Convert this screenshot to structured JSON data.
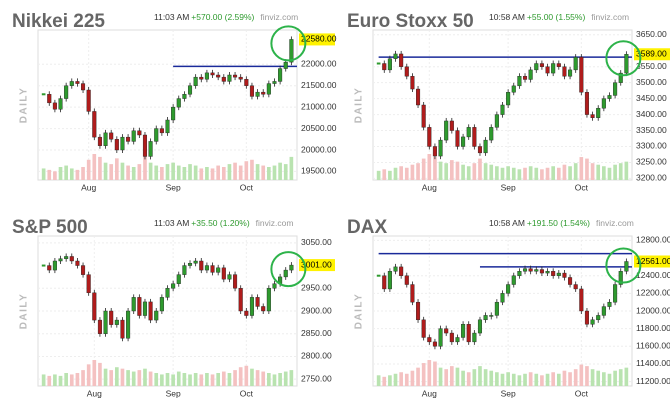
{
  "chart_data": [
    {
      "type": "candlestick",
      "title": "Nikkei 225",
      "time": "11:03 AM",
      "change": "+570.00 (2.59%)",
      "source": "finviz.com",
      "side_label": "DAILY",
      "up_color": "#2e9a2e",
      "down_color": "#b01c1c",
      "xlim": [
        -1,
        45
      ],
      "xticks": [
        {
          "value": 8,
          "label": "Aug"
        },
        {
          "value": 23,
          "label": "Sep"
        },
        {
          "value": 36,
          "label": "Oct"
        }
      ],
      "ylim": [
        19300,
        22800
      ],
      "yticks": [
        {
          "value": 22000,
          "label": "22000.00"
        },
        {
          "value": 21500,
          "label": "21500.00"
        },
        {
          "value": 21000,
          "label": "21000.00"
        },
        {
          "value": 20500,
          "label": "20500.00"
        },
        {
          "value": 20000,
          "label": "20000.00"
        },
        {
          "value": 19500,
          "label": "19500.00"
        }
      ],
      "last_label": {
        "value": 22580,
        "label": "22580.00"
      },
      "levels": [
        {
          "value": 21950,
          "from": 23
        }
      ],
      "values": [
        21300,
        21100,
        20950,
        21200,
        21500,
        21600,
        21550,
        21400,
        20900,
        20300,
        20100,
        20400,
        20250,
        20000,
        20300,
        20200,
        20450,
        20350,
        19850,
        20200,
        20500,
        20400,
        20700,
        21000,
        21200,
        21300,
        21500,
        21700,
        21650,
        21800,
        21750,
        21700,
        21600,
        21750,
        21700,
        21650,
        21500,
        21250,
        21350,
        21300,
        21550,
        21600,
        21900,
        22050,
        22580
      ],
      "volume": [
        40,
        35,
        30,
        45,
        50,
        40,
        35,
        45,
        70,
        90,
        80,
        60,
        55,
        75,
        60,
        50,
        45,
        55,
        85,
        60,
        50,
        45,
        55,
        60,
        50,
        45,
        55,
        50,
        40,
        45,
        40,
        50,
        45,
        55,
        60,
        50,
        65,
        70,
        55,
        50,
        45,
        50,
        60,
        55,
        80
      ]
    },
    {
      "type": "candlestick",
      "title": "Euro Stoxx 50",
      "time": "10:58 AM",
      "change": "+55.00 (1.55%)",
      "source": "finviz.com",
      "side_label": "DAILY",
      "up_color": "#2e9a2e",
      "down_color": "#b01c1c",
      "xlim": [
        -1,
        45
      ],
      "xticks": [
        {
          "value": 9,
          "label": "Aug"
        },
        {
          "value": 23,
          "label": "Sep"
        },
        {
          "value": 36,
          "label": "Oct"
        }
      ],
      "ylim": [
        3195,
        3665
      ],
      "yticks": [
        {
          "value": 3650,
          "label": "3650.00"
        },
        {
          "value": 3550,
          "label": "3550.00"
        },
        {
          "value": 3500,
          "label": "3500.00"
        },
        {
          "value": 3450,
          "label": "3450.00"
        },
        {
          "value": 3400,
          "label": "3400.00"
        },
        {
          "value": 3350,
          "label": "3350.00"
        },
        {
          "value": 3300,
          "label": "3300.00"
        },
        {
          "value": 3250,
          "label": "3250.00"
        },
        {
          "value": 3200,
          "label": "3200.00"
        }
      ],
      "last_label": {
        "value": 3589,
        "label": "3589.00"
      },
      "levels": [
        {
          "value": 3580,
          "from": 0
        }
      ],
      "values": [
        3560,
        3540,
        3575,
        3590,
        3550,
        3520,
        3480,
        3430,
        3360,
        3300,
        3270,
        3320,
        3380,
        3350,
        3300,
        3330,
        3360,
        3300,
        3280,
        3320,
        3360,
        3400,
        3430,
        3470,
        3490,
        3520,
        3510,
        3540,
        3560,
        3550,
        3530,
        3560,
        3550,
        3520,
        3540,
        3580,
        3470,
        3400,
        3390,
        3420,
        3450,
        3460,
        3500,
        3530,
        3589
      ],
      "volume": [
        30,
        35,
        30,
        40,
        45,
        40,
        50,
        55,
        70,
        85,
        75,
        60,
        55,
        65,
        60,
        50,
        45,
        55,
        70,
        55,
        50,
        45,
        40,
        45,
        40,
        35,
        40,
        45,
        40,
        35,
        40,
        45,
        40,
        50,
        45,
        55,
        75,
        70,
        55,
        50,
        45,
        40,
        50,
        55,
        60
      ]
    },
    {
      "type": "candlestick",
      "title": "S&P 500",
      "time": "11:03 AM",
      "change": "+35.50 (1.20%)",
      "source": "finviz.com",
      "side_label": "DAILY",
      "up_color": "#2e9a2e",
      "down_color": "#b01c1c",
      "xlim": [
        -1,
        45
      ],
      "xticks": [
        {
          "value": 9,
          "label": "Aug"
        },
        {
          "value": 23,
          "label": "Sep"
        },
        {
          "value": 36,
          "label": "Oct"
        }
      ],
      "ylim": [
        2735,
        3065
      ],
      "yticks": [
        {
          "value": 3050,
          "label": "3050.00"
        },
        {
          "value": 2950,
          "label": "2950.00"
        },
        {
          "value": 2900,
          "label": "2900.00"
        },
        {
          "value": 2850,
          "label": "2850.00"
        },
        {
          "value": 2800,
          "label": "2800.00"
        },
        {
          "value": 2750,
          "label": "2750.00"
        }
      ],
      "last_label": {
        "value": 3001,
        "label": "3001.00"
      },
      "levels": [],
      "values": [
        3000,
        2990,
        3010,
        3015,
        3020,
        3010,
        3000,
        2980,
        2940,
        2880,
        2850,
        2900,
        2870,
        2880,
        2840,
        2900,
        2930,
        2890,
        2920,
        2880,
        2900,
        2930,
        2950,
        2960,
        2980,
        3000,
        3005,
        3010,
        2990,
        3000,
        2985,
        2995,
        2970,
        2980,
        2950,
        2900,
        2890,
        2930,
        2910,
        2900,
        2950,
        2960,
        2975,
        2990,
        3001
      ],
      "volume": [
        40,
        35,
        40,
        35,
        45,
        40,
        45,
        55,
        75,
        90,
        80,
        60,
        55,
        65,
        60,
        55,
        50,
        55,
        60,
        50,
        45,
        40,
        45,
        40,
        50,
        45,
        40,
        45,
        40,
        45,
        40,
        45,
        50,
        45,
        55,
        65,
        70,
        60,
        55,
        50,
        45,
        40,
        45,
        50,
        55
      ]
    },
    {
      "type": "candlestick",
      "title": "DAX",
      "time": "10:58 AM",
      "change": "+191.50 (1.54%)",
      "source": "finviz.com",
      "side_label": "DAILY",
      "up_color": "#2e9a2e",
      "down_color": "#b01c1c",
      "xlim": [
        -1,
        45
      ],
      "xticks": [
        {
          "value": 9,
          "label": "Aug"
        },
        {
          "value": 23,
          "label": "Sep"
        },
        {
          "value": 36,
          "label": "Oct"
        }
      ],
      "ylim": [
        11150,
        12850
      ],
      "yticks": [
        {
          "value": 12800,
          "label": "12800.00"
        },
        {
          "value": 12400,
          "label": "12400.00"
        },
        {
          "value": 12200,
          "label": "12200.00"
        },
        {
          "value": 12000,
          "label": "12000.00"
        },
        {
          "value": 11800,
          "label": "11800.00"
        },
        {
          "value": 11600,
          "label": "11600.00"
        },
        {
          "value": 11400,
          "label": "11400.00"
        },
        {
          "value": 11200,
          "label": "11200.00"
        }
      ],
      "last_label": {
        "value": 12561,
        "label": "12561.00"
      },
      "levels": [
        {
          "value": 12650,
          "from": 0
        },
        {
          "value": 12500,
          "from": 18
        }
      ],
      "values": [
        12400,
        12250,
        12450,
        12500,
        12400,
        12300,
        12100,
        11900,
        11700,
        11650,
        11600,
        11800,
        11750,
        11650,
        11700,
        11850,
        11650,
        11750,
        11900,
        11950,
        11950,
        12100,
        12200,
        12300,
        12400,
        12450,
        12480,
        12450,
        12470,
        12430,
        12450,
        12400,
        12430,
        12380,
        12300,
        12250,
        12000,
        11850,
        11900,
        11950,
        12050,
        12100,
        12300,
        12450,
        12561
      ],
      "volume": [
        35,
        30,
        35,
        40,
        45,
        40,
        50,
        60,
        75,
        85,
        80,
        60,
        55,
        65,
        60,
        50,
        45,
        55,
        65,
        55,
        50,
        45,
        40,
        45,
        40,
        35,
        40,
        45,
        40,
        35,
        40,
        45,
        40,
        50,
        45,
        55,
        70,
        65,
        55,
        50,
        45,
        40,
        50,
        55,
        60
      ]
    }
  ]
}
